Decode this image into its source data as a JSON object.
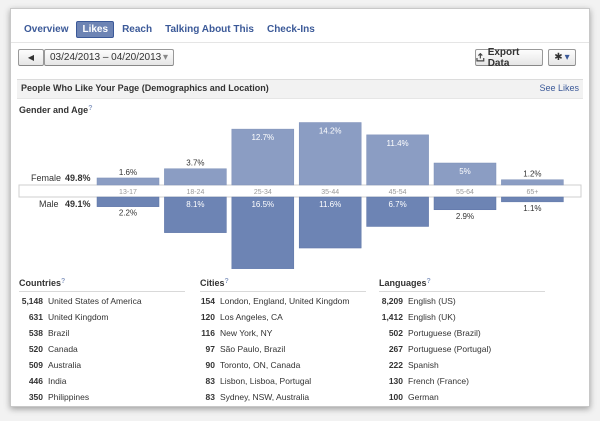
{
  "tabs": [
    {
      "label": "Overview",
      "active": false
    },
    {
      "label": "Likes",
      "active": true
    },
    {
      "label": "Reach",
      "active": false
    },
    {
      "label": "Talking About This",
      "active": false
    },
    {
      "label": "Check-Ins",
      "active": false
    }
  ],
  "toolbar": {
    "prev_glyph": "◀",
    "date_range": "03/24/2013 – 04/20/2013",
    "export_label": "Export Data",
    "gear_glyph": "✱",
    "caret": "▾"
  },
  "section": {
    "title": "People Who Like Your Page (Demographics and Location)",
    "see_likes": "See Likes"
  },
  "gender_title": "Gender and Age",
  "help_glyph": "?",
  "chart_data": {
    "type": "bar",
    "categories": [
      "13-17",
      "18-24",
      "25-34",
      "35-44",
      "45-54",
      "55-64",
      "65+"
    ],
    "series": [
      {
        "name": "Female",
        "total": "49.8%",
        "values": [
          1.6,
          3.7,
          12.7,
          14.2,
          11.4,
          5,
          1.2
        ],
        "labels": [
          "1.6%",
          "3.7%",
          "12.7%",
          "14.2%",
          "11.4%",
          "5%",
          "1.2%"
        ],
        "color": "#8b9dc3"
      },
      {
        "name": "Male",
        "total": "49.1%",
        "values": [
          2.2,
          8.1,
          16.5,
          11.6,
          6.7,
          2.9,
          1.1
        ],
        "labels": [
          "2.2%",
          "8.1%",
          "16.5%",
          "11.6%",
          "6.7%",
          "2.9%",
          "1.1%"
        ],
        "color": "#6d84b4"
      }
    ]
  },
  "countries": {
    "title": "Countries",
    "rows": [
      {
        "count": "5,148",
        "name": "United States of America"
      },
      {
        "count": "631",
        "name": "United Kingdom"
      },
      {
        "count": "538",
        "name": "Brazil"
      },
      {
        "count": "520",
        "name": "Canada"
      },
      {
        "count": "509",
        "name": "Australia"
      },
      {
        "count": "446",
        "name": "India"
      },
      {
        "count": "350",
        "name": "Philippines"
      }
    ]
  },
  "cities": {
    "title": "Cities",
    "rows": [
      {
        "count": "154",
        "name": "London, England, United Kingdom"
      },
      {
        "count": "120",
        "name": "Los Angeles, CA"
      },
      {
        "count": "116",
        "name": "New York, NY"
      },
      {
        "count": "97",
        "name": "São Paulo, Brazil"
      },
      {
        "count": "90",
        "name": "Toronto, ON, Canada"
      },
      {
        "count": "83",
        "name": "Lisbon, Lisboa, Portugal"
      },
      {
        "count": "83",
        "name": "Sydney, NSW, Australia"
      }
    ]
  },
  "languages": {
    "title": "Languages",
    "rows": [
      {
        "count": "8,209",
        "name": "English (US)"
      },
      {
        "count": "1,412",
        "name": "English (UK)"
      },
      {
        "count": "502",
        "name": "Portuguese (Brazil)"
      },
      {
        "count": "267",
        "name": "Portuguese (Portugal)"
      },
      {
        "count": "222",
        "name": "Spanish"
      },
      {
        "count": "130",
        "name": "French (France)"
      },
      {
        "count": "100",
        "name": "German"
      }
    ]
  }
}
